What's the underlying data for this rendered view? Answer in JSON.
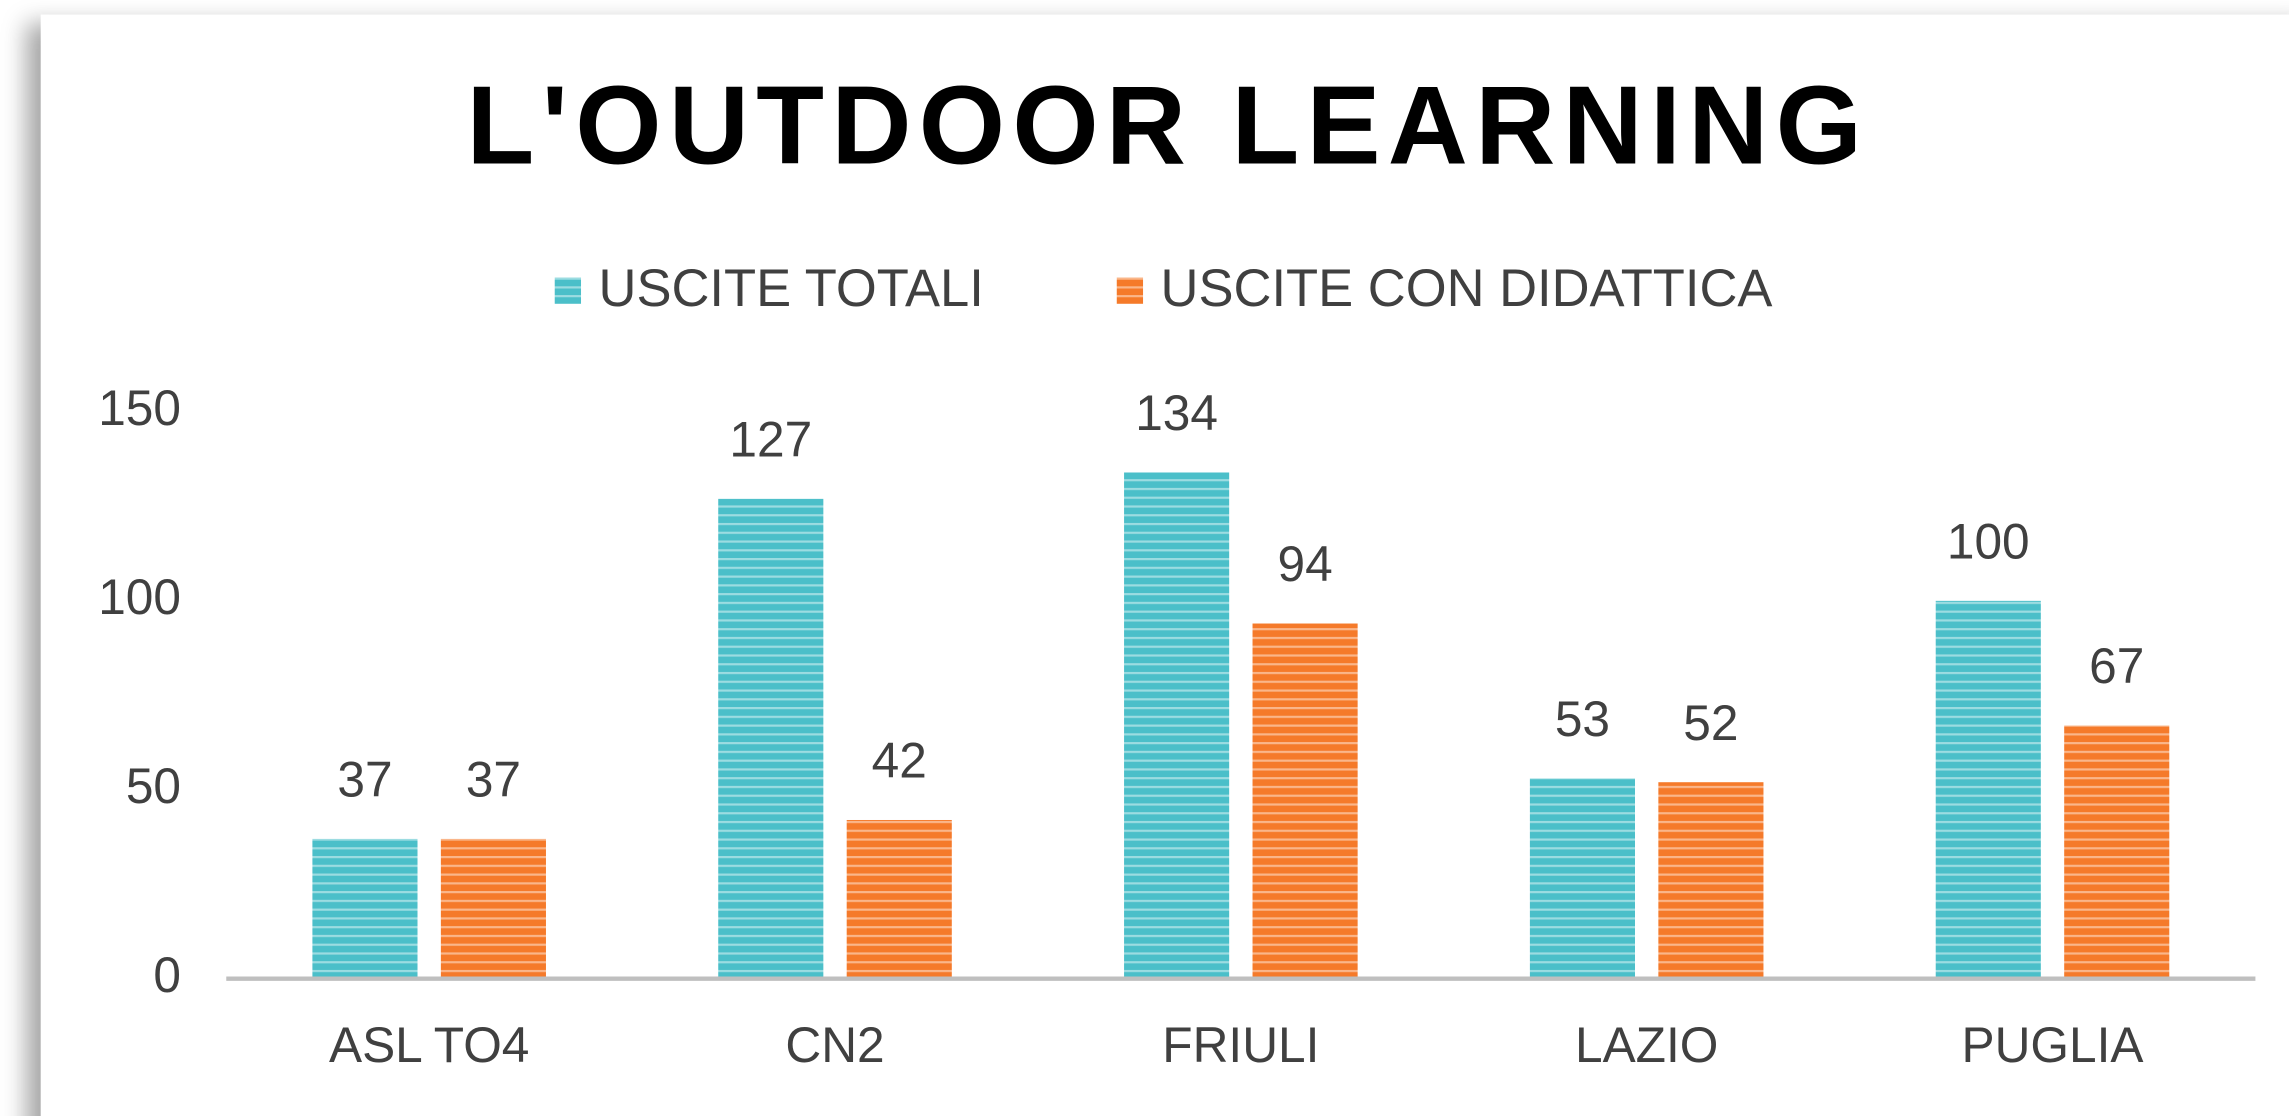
{
  "chart_data": {
    "type": "bar",
    "title": "L'OUTDOOR LEARNING",
    "categories": [
      "ASL TO4",
      "CN2",
      "FRIULI",
      "LAZIO",
      "PUGLIA"
    ],
    "series": [
      {
        "name": "USCITE TOTALI",
        "color": "#4bbfc9",
        "values": [
          37,
          127,
          134,
          53,
          100
        ]
      },
      {
        "name": "USCITE CON DIDATTICA",
        "color": "#f57a2a",
        "values": [
          37,
          42,
          94,
          52,
          67
        ]
      }
    ],
    "ylim": [
      0,
      150
    ],
    "yticks": [
      0,
      50,
      100,
      150
    ],
    "grid": false,
    "legend": "top"
  }
}
